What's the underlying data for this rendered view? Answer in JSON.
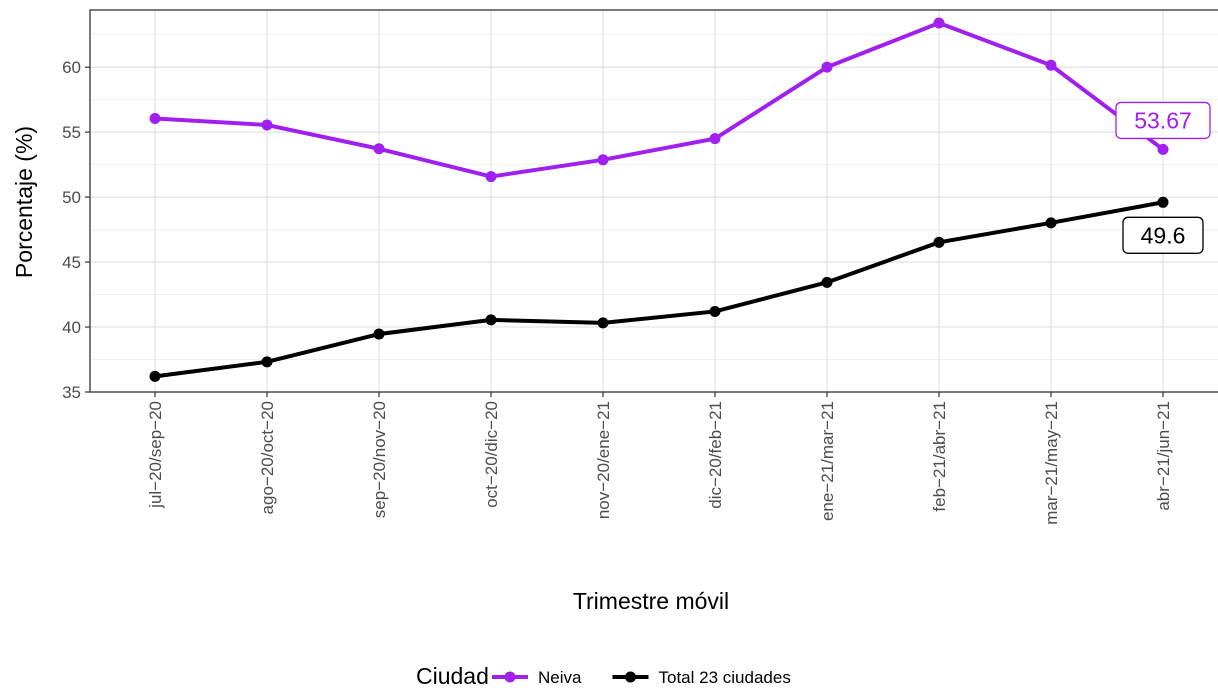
{
  "chart_data": {
    "type": "line",
    "title": "",
    "xlabel": "Trimestre móvil",
    "ylabel": "Porcentaje (%)",
    "categories": [
      "jul−20/sep−20",
      "ago−20/oct−20",
      "sep−20/nov−20",
      "oct−20/dic−20",
      "nov−20/ene−21",
      "dic−20/feb−21",
      "ene−21/mar−21",
      "feb−21/abr−21",
      "mar−21/may−21",
      "abr−21/jun−21"
    ],
    "ylim": [
      35,
      64.4
    ],
    "yticks": [
      35,
      40,
      45,
      50,
      55,
      60
    ],
    "grid": true,
    "legend_position": "bottom",
    "legend_title": "Ciudad",
    "series": [
      {
        "name": "Neiva",
        "color": "#A020F0",
        "values": [
          56.05,
          55.55,
          53.72,
          51.58,
          52.87,
          54.5,
          60.0,
          63.4,
          60.15,
          53.67
        ],
        "end_label": "53.67"
      },
      {
        "name": "Total 23 ciudades",
        "color": "#000000",
        "values": [
          36.2,
          37.32,
          39.46,
          40.55,
          40.32,
          41.2,
          43.44,
          46.52,
          48.02,
          49.6
        ],
        "end_label": "49.6"
      }
    ]
  }
}
